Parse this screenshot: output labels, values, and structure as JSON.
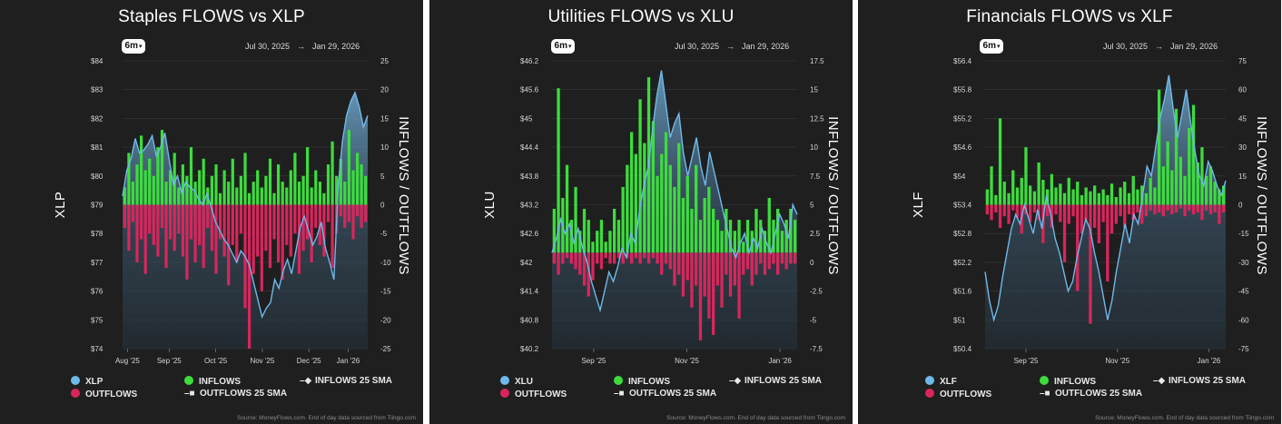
{
  "colors": {
    "inflow": "#3ddc3d",
    "outflow": "#d8265c",
    "price_line": "#6fb9ea",
    "panel_bg": "#1f1f1f",
    "grid": "#3a3a3a"
  },
  "legend": {
    "inflows": "INFLOWS",
    "outflows": "OUTFLOWS",
    "inflows_sma": "INFLOWS 25 SMA",
    "outflows_sma": "OUTFLOWS 25 SMA"
  },
  "source_text": "Source: MoneyFlows.com. End of day data sourced from Tiingo.com",
  "chart_data": [
    {
      "type": "bar+area",
      "title": "Staples FLOWS vs XLP",
      "range_button": "6m",
      "date_from": "Jul 30, 2025",
      "date_arrow": "→",
      "date_to": "Jan 29, 2026",
      "ticker": "XLP",
      "ylabel_left": "XLP",
      "ylabel_right": "INFLOWS / OUTFLOWS",
      "x_ticks": [
        "Aug '25",
        "Sep '25",
        "Oct '25",
        "Nov '25",
        "Dec '25",
        "Jan '26"
      ],
      "x_tick_pos": [
        0.02,
        0.19,
        0.38,
        0.57,
        0.76,
        0.92
      ],
      "left_ticks": [
        "$84",
        "$83",
        "$82",
        "$81",
        "$80",
        "$79",
        "$78",
        "$77",
        "$76",
        "$75",
        "$74"
      ],
      "right_ticks": [
        "25",
        "20",
        "15",
        "10",
        "5",
        "0",
        "-5",
        "-10",
        "-15",
        "-20",
        "-25"
      ],
      "price_range": [
        74,
        84
      ],
      "flow_range": [
        -25,
        25
      ],
      "price": [
        79.3,
        80.2,
        80.6,
        81.3,
        80.8,
        80.9,
        81.1,
        81.4,
        80.7,
        81.0,
        81.5,
        80.6,
        79.7,
        80.0,
        79.4,
        79.8,
        79.6,
        79.5,
        79.2,
        79.0,
        79.4,
        78.9,
        78.4,
        78.1,
        77.8,
        77.6,
        77.3,
        77.0,
        77.4,
        77.2,
        76.9,
        76.3,
        75.7,
        75.1,
        75.4,
        75.6,
        76.4,
        76.1,
        76.7,
        77.1,
        76.6,
        77.4,
        78.2,
        78.6,
        78.1,
        77.6,
        77.9,
        78.4,
        77.5,
        77.0,
        76.4,
        79.6,
        81.2,
        82.1,
        82.6,
        82.9,
        82.4,
        81.7,
        82.1
      ],
      "inflows": [
        3,
        9,
        4,
        7,
        12,
        6,
        8,
        5,
        10,
        13,
        4,
        6,
        9,
        3,
        7,
        5,
        10,
        4,
        6,
        8,
        3,
        5,
        7,
        2,
        6,
        4,
        8,
        3,
        5,
        9,
        2,
        4,
        6,
        3,
        5,
        8,
        2,
        7,
        4,
        3,
        6,
        9,
        4,
        5,
        10,
        3,
        6,
        4,
        2,
        7,
        11,
        5,
        8,
        4,
        13,
        6,
        9,
        7,
        5
      ],
      "outflows": [
        -4,
        -8,
        -3,
        -10,
        -6,
        -12,
        -5,
        -7,
        -9,
        -4,
        -11,
        -6,
        -8,
        -5,
        -9,
        -13,
        -6,
        -10,
        -7,
        -11,
        -4,
        -8,
        -12,
        -6,
        -9,
        -14,
        -7,
        -10,
        -5,
        -18,
        -25,
        -12,
        -9,
        -15,
        -8,
        -11,
        -6,
        -10,
        -13,
        -7,
        -9,
        -5,
        -12,
        -8,
        -6,
        -10,
        -4,
        -7,
        -9,
        -3,
        -11,
        -5,
        -2,
        -4,
        -3,
        -6,
        -2,
        -4,
        -3
      ]
    },
    {
      "type": "bar+area",
      "title": "Utilities FLOWS vs XLU",
      "range_button": "6m",
      "date_from": "Jul 30, 2025",
      "date_arrow": "→",
      "date_to": "Jan 29, 2026",
      "ticker": "XLU",
      "ylabel_left": "XLU",
      "ylabel_right": "INFLOWS / OUTFLOWS",
      "x_ticks": [
        "Sep '25",
        "Nov '25",
        "Jan '26"
      ],
      "x_tick_pos": [
        0.17,
        0.55,
        0.93
      ],
      "left_ticks": [
        "$46.2",
        "$45.6",
        "$45",
        "$44.4",
        "$43.8",
        "$43.2",
        "$42.6",
        "$42",
        "$41.4",
        "$40.8",
        "$40.2"
      ],
      "right_ticks": [
        "17.5",
        "15",
        "12.5",
        "10",
        "7.5",
        "5",
        "2.5",
        "0",
        "-2.5",
        "-5",
        "-7.5"
      ],
      "price_range": [
        40.2,
        46.2
      ],
      "flow_range": [
        -8.75,
        17.5
      ],
      "price": [
        42.2,
        42.5,
        42.9,
        42.6,
        42.8,
        42.4,
        42.7,
        42.3,
        42.0,
        41.6,
        41.3,
        41.0,
        41.4,
        41.8,
        41.6,
        41.9,
        42.3,
        42.1,
        42.6,
        42.4,
        43.1,
        43.6,
        44.0,
        44.8,
        45.5,
        46.0,
        45.3,
        44.6,
        44.9,
        45.1,
        44.3,
        43.8,
        44.2,
        44.6,
        44.0,
        43.6,
        44.3,
        43.9,
        43.5,
        43.1,
        42.7,
        42.3,
        42.1,
        42.4,
        42.6,
        42.2,
        42.5,
        42.3,
        42.7,
        42.4,
        42.2,
        42.6,
        43.0,
        42.8,
        42.5,
        43.2,
        43.0
      ],
      "inflows": [
        4,
        15,
        5,
        8,
        3,
        6,
        2,
        4,
        3,
        1,
        2,
        3,
        1,
        2,
        4,
        3,
        6,
        8,
        11,
        9,
        14,
        10,
        16,
        12,
        7,
        9,
        11,
        8,
        6,
        10,
        5,
        7,
        4,
        8,
        3,
        5,
        6,
        4,
        3,
        2,
        4,
        3,
        2,
        3,
        1,
        3,
        2,
        4,
        3,
        2,
        5,
        3,
        4,
        2,
        3,
        4,
        3
      ],
      "outflows": [
        -1,
        -2,
        -1,
        -0.5,
        -1,
        -1.5,
        -2,
        -3,
        -4,
        -2.5,
        -1,
        -1.5,
        -0.5,
        -1,
        -1,
        -0.5,
        -1,
        -0.5,
        -1,
        -0.5,
        -1,
        -0.5,
        -1,
        -0.5,
        -1,
        -2,
        -1,
        -1.5,
        -3,
        -2,
        -4,
        -2.5,
        -5,
        -3,
        -8,
        -4,
        -6,
        -7.5,
        -3,
        -5,
        -2,
        -4,
        -3,
        -6,
        -2,
        -1.5,
        -3,
        -2,
        -1,
        -2,
        -1.5,
        -1,
        -2,
        -1,
        -1.5,
        -1,
        -1
      ]
    },
    {
      "type": "bar+area",
      "title": "Financials FLOWS vs XLF",
      "range_button": "6m",
      "date_from": "Jul 30, 2025",
      "date_arrow": "→",
      "date_to": "Jan 29, 2026",
      "ticker": "XLF",
      "ylabel_left": "XLF",
      "ylabel_right": "INFLOWS / OUTFLOWS",
      "x_ticks": [
        "Sep '25",
        "Nov '25",
        "Jan '26"
      ],
      "x_tick_pos": [
        0.17,
        0.55,
        0.93
      ],
      "left_ticks": [
        "$56.4",
        "$55.8",
        "$55.2",
        "$54.6",
        "$54",
        "$53.4",
        "$52.8",
        "$52.2",
        "$51.6",
        "$51",
        "$50.4"
      ],
      "right_ticks": [
        "75",
        "60",
        "45",
        "30",
        "15",
        "0",
        "-15",
        "-30",
        "-45",
        "-60",
        "-75"
      ],
      "price_range": [
        50.4,
        56.4
      ],
      "flow_range": [
        -75,
        75
      ],
      "price": [
        52.0,
        51.4,
        51.0,
        51.3,
        51.9,
        52.4,
        52.9,
        53.2,
        53.0,
        53.4,
        53.1,
        52.8,
        53.3,
        52.9,
        53.6,
        53.2,
        52.7,
        52.4,
        52.0,
        51.6,
        51.8,
        52.3,
        52.7,
        53.1,
        52.9,
        52.4,
        52.0,
        51.5,
        51.0,
        51.4,
        52.0,
        52.5,
        53.0,
        52.6,
        53.2,
        53.0,
        53.6,
        54.2,
        54.0,
        54.6,
        55.2,
        55.6,
        56.1,
        55.4,
        54.8,
        55.3,
        55.8,
        55.1,
        54.5,
        54.0,
        53.8,
        54.3,
        54.1,
        53.8,
        53.6,
        53.9
      ],
      "inflows": [
        8,
        20,
        5,
        45,
        12,
        6,
        18,
        9,
        14,
        30,
        10,
        7,
        22,
        13,
        8,
        16,
        9,
        11,
        6,
        14,
        8,
        12,
        5,
        9,
        7,
        10,
        6,
        8,
        5,
        11,
        4,
        9,
        12,
        6,
        15,
        8,
        10,
        6,
        14,
        9,
        60,
        20,
        33,
        18,
        50,
        25,
        15,
        40,
        52,
        22,
        30,
        15,
        20,
        12,
        8,
        10
      ],
      "outflows": [
        -5,
        -8,
        -4,
        -12,
        -6,
        -10,
        -3,
        -7,
        -15,
        -5,
        -9,
        -4,
        -8,
        -20,
        -6,
        -12,
        -5,
        -9,
        -30,
        -10,
        -6,
        -45,
        -15,
        -8,
        -62,
        -12,
        -20,
        -9,
        -40,
        -15,
        -10,
        -6,
        -12,
        -5,
        -8,
        -4,
        -10,
        -6,
        -3,
        -5,
        -4,
        -6,
        -3,
        -5,
        -4,
        -2,
        -6,
        -3,
        -5,
        -4,
        -8,
        -3,
        -5,
        -4,
        -10,
        -4
      ]
    }
  ]
}
